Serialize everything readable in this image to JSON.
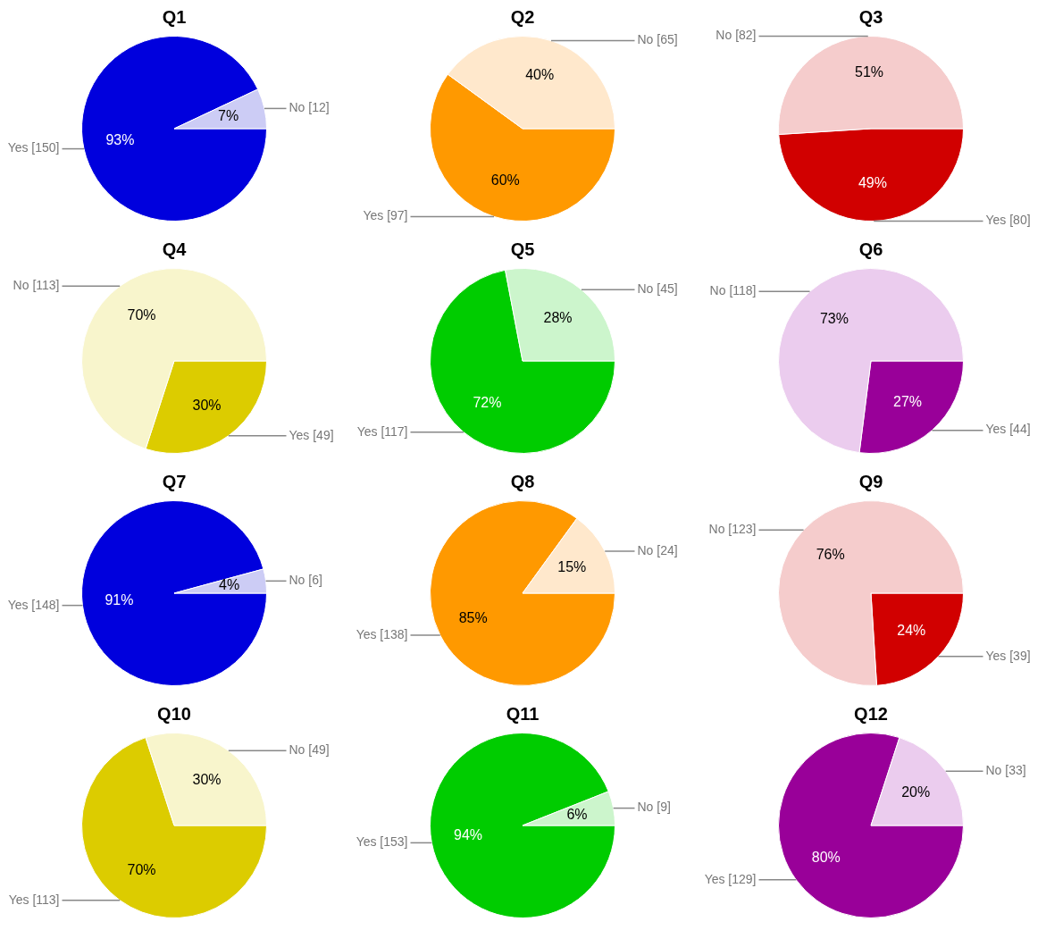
{
  "chart_data": [
    {
      "type": "pie",
      "title": "Q1",
      "categories": [
        "Yes [150]",
        "No [12]"
      ],
      "values": [
        93,
        7
      ],
      "colors": [
        "#0000dd",
        "#ccccf5"
      ],
      "value_labels": [
        "93%",
        "7%"
      ],
      "legend": false
    },
    {
      "type": "pie",
      "title": "Q2",
      "categories": [
        "Yes [97]",
        "No [65]"
      ],
      "values": [
        60,
        40
      ],
      "colors": [
        "#ff9900",
        "#ffe8cc"
      ],
      "value_labels": [
        "60%",
        "40%"
      ],
      "legend": false
    },
    {
      "type": "pie",
      "title": "Q3",
      "categories": [
        "Yes [80]",
        "No [82]"
      ],
      "values": [
        49,
        51
      ],
      "colors": [
        "#d10000",
        "#f5cccc"
      ],
      "value_labels": [
        "49%",
        "51%"
      ],
      "legend": false
    },
    {
      "type": "pie",
      "title": "Q4",
      "categories": [
        "Yes [49]",
        "No [113]"
      ],
      "values": [
        30,
        70
      ],
      "colors": [
        "#dccc00",
        "#f8f5cc"
      ],
      "value_labels": [
        "30%",
        "70%"
      ],
      "legend": false
    },
    {
      "type": "pie",
      "title": "Q5",
      "categories": [
        "Yes [117]",
        "No [45]"
      ],
      "values": [
        72,
        28
      ],
      "colors": [
        "#00cc00",
        "#ccf5cc"
      ],
      "value_labels": [
        "72%",
        "28%"
      ],
      "legend": false
    },
    {
      "type": "pie",
      "title": "Q6",
      "categories": [
        "Yes [44]",
        "No [118]"
      ],
      "values": [
        27,
        73
      ],
      "colors": [
        "#990099",
        "#ebccee"
      ],
      "value_labels": [
        "27%",
        "73%"
      ],
      "legend": false
    },
    {
      "type": "pie",
      "title": "Q7",
      "categories": [
        "Yes [148]",
        "No [6]"
      ],
      "values": [
        91,
        4
      ],
      "colors": [
        "#0000dd",
        "#ccccf5"
      ],
      "value_labels": [
        "91%",
        "4%"
      ],
      "legend": false
    },
    {
      "type": "pie",
      "title": "Q8",
      "categories": [
        "Yes [138]",
        "No [24]"
      ],
      "values": [
        85,
        15
      ],
      "colors": [
        "#ff9900",
        "#ffe8cc"
      ],
      "value_labels": [
        "85%",
        "15%"
      ],
      "legend": false
    },
    {
      "type": "pie",
      "title": "Q9",
      "categories": [
        "Yes [39]",
        "No [123]"
      ],
      "values": [
        24,
        76
      ],
      "colors": [
        "#d10000",
        "#f5cccc"
      ],
      "value_labels": [
        "24%",
        "76%"
      ],
      "legend": false
    },
    {
      "type": "pie",
      "title": "Q10",
      "categories": [
        "Yes [113]",
        "No [49]"
      ],
      "values": [
        70,
        30
      ],
      "colors": [
        "#dccc00",
        "#f8f5cc"
      ],
      "value_labels": [
        "70%",
        "30%"
      ],
      "legend": false
    },
    {
      "type": "pie",
      "title": "Q11",
      "categories": [
        "Yes [153]",
        "No [9]"
      ],
      "values": [
        94,
        6
      ],
      "colors": [
        "#00cc00",
        "#ccf5cc"
      ],
      "value_labels": [
        "94%",
        "6%"
      ],
      "legend": false
    },
    {
      "type": "pie",
      "title": "Q12",
      "categories": [
        "Yes [129]",
        "No [33]"
      ],
      "values": [
        80,
        20
      ],
      "colors": [
        "#990099",
        "#ebccee"
      ],
      "value_labels": [
        "80%",
        "20%"
      ],
      "legend": false
    }
  ]
}
